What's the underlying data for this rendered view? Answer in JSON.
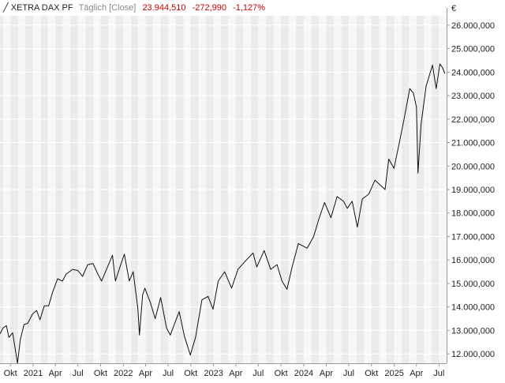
{
  "header": {
    "symbol": "XETRA DAX PF",
    "period": "Täglich [Close]",
    "last": "23.944,510",
    "change": "-272,990",
    "change_pct": "-1,127%"
  },
  "colors": {
    "line": "#111111",
    "band_dark": "#ebebeb",
    "band_light": "#f7f7f7",
    "grid": "#ffffff",
    "negative": "#cc0000",
    "text": "#222222"
  },
  "chart_data": {
    "type": "line",
    "currency_symbol": "€",
    "ylim": [
      11600000,
      26400000
    ],
    "xlim": [
      "2020-08-20",
      "2025-08-01"
    ],
    "ylabels": [
      "12.000,000",
      "13.000,000",
      "14.000,000",
      "15.000,000",
      "16.000,000",
      "17.000,000",
      "18.000,000",
      "19.000,000",
      "20.000,000",
      "21.000,000",
      "22.000,000",
      "23.000,000",
      "24.000,000",
      "25.000,000",
      "26.000,000"
    ],
    "yticks": [
      12000000,
      13000000,
      14000000,
      15000000,
      16000000,
      17000000,
      18000000,
      19000000,
      20000000,
      21000000,
      22000000,
      23000000,
      24000000,
      25000000,
      26000000
    ],
    "xticks": [
      {
        "date": "2020-10-01",
        "label": "Okt"
      },
      {
        "date": "2021-01-01",
        "label": "2021"
      },
      {
        "date": "2021-04-01",
        "label": "Apr"
      },
      {
        "date": "2021-07-01",
        "label": "Jul"
      },
      {
        "date": "2021-10-01",
        "label": "Okt"
      },
      {
        "date": "2022-01-01",
        "label": "2022"
      },
      {
        "date": "2022-04-01",
        "label": "Apr"
      },
      {
        "date": "2022-07-01",
        "label": "Jul"
      },
      {
        "date": "2022-10-01",
        "label": "Okt"
      },
      {
        "date": "2023-01-01",
        "label": "2023"
      },
      {
        "date": "2023-04-01",
        "label": "Apr"
      },
      {
        "date": "2023-07-01",
        "label": "Jul"
      },
      {
        "date": "2023-10-01",
        "label": "Okt"
      },
      {
        "date": "2024-01-01",
        "label": "2024"
      },
      {
        "date": "2024-04-01",
        "label": "Apr"
      },
      {
        "date": "2024-07-01",
        "label": "Jul"
      },
      {
        "date": "2024-10-01",
        "label": "Okt"
      },
      {
        "date": "2025-01-01",
        "label": "2025"
      },
      {
        "date": "2025-04-01",
        "label": "Apr"
      },
      {
        "date": "2025-07-01",
        "label": "Jul"
      }
    ],
    "series": [
      {
        "points": [
          [
            "2020-08-20",
            12850000
          ],
          [
            "2020-09-01",
            13100000
          ],
          [
            "2020-09-15",
            13200000
          ],
          [
            "2020-09-25",
            12700000
          ],
          [
            "2020-10-10",
            12900000
          ],
          [
            "2020-10-30",
            11600000
          ],
          [
            "2020-11-10",
            12600000
          ],
          [
            "2020-11-25",
            13250000
          ],
          [
            "2020-12-10",
            13300000
          ],
          [
            "2020-12-30",
            13700000
          ],
          [
            "2021-01-15",
            13850000
          ],
          [
            "2021-01-29",
            13450000
          ],
          [
            "2021-02-15",
            14050000
          ],
          [
            "2021-03-05",
            14050000
          ],
          [
            "2021-03-20",
            14600000
          ],
          [
            "2021-04-10",
            15200000
          ],
          [
            "2021-04-30",
            15100000
          ],
          [
            "2021-05-15",
            15400000
          ],
          [
            "2021-06-10",
            15600000
          ],
          [
            "2021-07-01",
            15550000
          ],
          [
            "2021-07-20",
            15300000
          ],
          [
            "2021-08-10",
            15800000
          ],
          [
            "2021-08-31",
            15850000
          ],
          [
            "2021-09-20",
            15400000
          ],
          [
            "2021-10-05",
            15100000
          ],
          [
            "2021-10-25",
            15600000
          ],
          [
            "2021-11-18",
            16200000
          ],
          [
            "2021-11-30",
            15100000
          ],
          [
            "2021-12-15",
            15600000
          ],
          [
            "2022-01-05",
            16250000
          ],
          [
            "2022-01-25",
            15100000
          ],
          [
            "2022-02-10",
            15500000
          ],
          [
            "2022-03-01",
            13900000
          ],
          [
            "2022-03-07",
            12800000
          ],
          [
            "2022-03-20",
            14500000
          ],
          [
            "2022-03-29",
            14800000
          ],
          [
            "2022-04-20",
            14200000
          ],
          [
            "2022-05-10",
            13500000
          ],
          [
            "2022-06-01",
            14400000
          ],
          [
            "2022-06-25",
            13100000
          ],
          [
            "2022-07-10",
            12800000
          ],
          [
            "2022-08-15",
            13800000
          ],
          [
            "2022-09-05",
            12750000
          ],
          [
            "2022-09-29",
            11950000
          ],
          [
            "2022-10-20",
            12700000
          ],
          [
            "2022-11-15",
            14300000
          ],
          [
            "2022-12-10",
            14450000
          ],
          [
            "2022-12-30",
            13900000
          ],
          [
            "2023-01-20",
            15100000
          ],
          [
            "2023-02-15",
            15500000
          ],
          [
            "2023-03-15",
            14800000
          ],
          [
            "2023-04-10",
            15600000
          ],
          [
            "2023-05-05",
            15900000
          ],
          [
            "2023-06-10",
            16300000
          ],
          [
            "2023-06-25",
            15700000
          ],
          [
            "2023-07-25",
            16400000
          ],
          [
            "2023-08-20",
            15600000
          ],
          [
            "2023-09-15",
            15800000
          ],
          [
            "2023-10-05",
            15100000
          ],
          [
            "2023-10-25",
            14750000
          ],
          [
            "2023-11-15",
            15700000
          ],
          [
            "2023-12-10",
            16700000
          ],
          [
            "2024-01-15",
            16500000
          ],
          [
            "2024-02-10",
            17000000
          ],
          [
            "2024-03-01",
            17700000
          ],
          [
            "2024-03-25",
            18450000
          ],
          [
            "2024-04-20",
            17800000
          ],
          [
            "2024-05-15",
            18700000
          ],
          [
            "2024-06-10",
            18500000
          ],
          [
            "2024-06-25",
            18200000
          ],
          [
            "2024-07-15",
            18500000
          ],
          [
            "2024-08-05",
            17400000
          ],
          [
            "2024-08-25",
            18600000
          ],
          [
            "2024-09-20",
            18800000
          ],
          [
            "2024-10-15",
            19400000
          ],
          [
            "2024-11-05",
            19200000
          ],
          [
            "2024-11-25",
            19000000
          ],
          [
            "2024-12-10",
            20300000
          ],
          [
            "2024-12-31",
            19900000
          ],
          [
            "2025-01-20",
            20900000
          ],
          [
            "2025-02-10",
            22000000
          ],
          [
            "2025-03-05",
            23300000
          ],
          [
            "2025-03-20",
            23100000
          ],
          [
            "2025-04-01",
            22500000
          ],
          [
            "2025-04-07",
            19700000
          ],
          [
            "2025-04-20",
            21800000
          ],
          [
            "2025-05-10",
            23400000
          ],
          [
            "2025-06-05",
            24300000
          ],
          [
            "2025-06-20",
            23300000
          ],
          [
            "2025-07-05",
            24350000
          ],
          [
            "2025-07-15",
            24200000
          ],
          [
            "2025-07-25",
            23944510
          ]
        ]
      }
    ]
  }
}
